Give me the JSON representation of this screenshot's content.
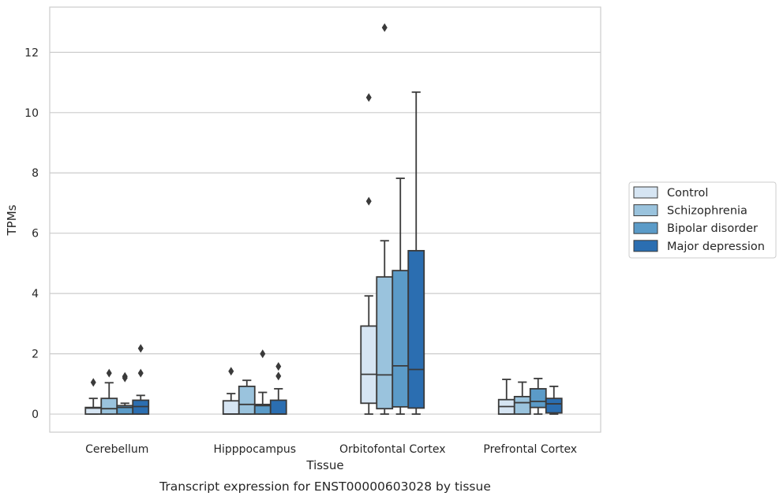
{
  "chart_data": {
    "type": "box",
    "title": "",
    "caption": "Transcript expression for ENST00000603028 by tissue",
    "xlabel": "Tissue",
    "ylabel": "TPMs",
    "ylim": [
      -0.6,
      13.5
    ],
    "yticks": [
      0,
      2,
      4,
      6,
      8,
      10,
      12
    ],
    "grid": "horizontal",
    "legend_position": "right",
    "categories": [
      "Cerebellum",
      "Hipppocampus",
      "Orbitofontal Cortex",
      "Prefrontal Cortex"
    ],
    "series": [
      {
        "name": "Control",
        "color": "#d6e5f3",
        "boxes": [
          {
            "whislo": 0,
            "q1": 0,
            "med": 0.2,
            "q3": 0.22,
            "whishi": 0.52,
            "fliers": [
              1.05
            ]
          },
          {
            "whislo": 0,
            "q1": 0,
            "med": 0,
            "q3": 0.44,
            "whishi": 0.68,
            "fliers": [
              1.42
            ]
          },
          {
            "whislo": 0,
            "q1": 0.36,
            "med": 1.32,
            "q3": 2.92,
            "whishi": 3.92,
            "fliers": [
              7.06,
              10.5
            ]
          },
          {
            "whislo": 0,
            "q1": 0,
            "med": 0.25,
            "q3": 0.48,
            "whishi": 1.15,
            "fliers": []
          }
        ]
      },
      {
        "name": "Schizophrenia",
        "color": "#9ac3dd",
        "boxes": [
          {
            "whislo": 0,
            "q1": 0,
            "med": 0.18,
            "q3": 0.52,
            "whishi": 1.04,
            "fliers": [
              1.36
            ]
          },
          {
            "whislo": 0,
            "q1": 0,
            "med": 0.32,
            "q3": 0.92,
            "whishi": 1.12,
            "fliers": []
          },
          {
            "whislo": 0,
            "q1": 0.18,
            "med": 1.3,
            "q3": 4.55,
            "whishi": 5.75,
            "fliers": [
              12.82
            ]
          },
          {
            "whislo": 0,
            "q1": 0,
            "med": 0.38,
            "q3": 0.58,
            "whishi": 1.06,
            "fliers": []
          }
        ]
      },
      {
        "name": "Bipolar disorder",
        "color": "#5b9bc8",
        "boxes": [
          {
            "whislo": 0,
            "q1": 0,
            "med": 0.22,
            "q3": 0.28,
            "whishi": 0.36,
            "fliers": [
              1.2,
              1.25
            ]
          },
          {
            "whislo": 0,
            "q1": 0,
            "med": 0.28,
            "q3": 0.32,
            "whishi": 0.72,
            "fliers": [
              2.0
            ]
          },
          {
            "whislo": 0,
            "q1": 0.24,
            "med": 1.6,
            "q3": 4.76,
            "whishi": 7.82,
            "fliers": []
          },
          {
            "whislo": 0,
            "q1": 0.22,
            "med": 0.42,
            "q3": 0.84,
            "whishi": 1.18,
            "fliers": []
          }
        ]
      },
      {
        "name": "Major depression",
        "color": "#2b6eb1",
        "boxes": [
          {
            "whislo": 0,
            "q1": 0,
            "med": 0.25,
            "q3": 0.46,
            "whishi": 0.62,
            "fliers": [
              1.36,
              2.18
            ]
          },
          {
            "whislo": 0,
            "q1": 0,
            "med": 0,
            "q3": 0.46,
            "whishi": 0.84,
            "fliers": [
              1.26,
              1.58
            ]
          },
          {
            "whislo": 0,
            "q1": 0.2,
            "med": 1.48,
            "q3": 5.42,
            "whishi": 10.68,
            "fliers": []
          },
          {
            "whislo": 0,
            "q1": 0.04,
            "med": 0.34,
            "q3": 0.52,
            "whishi": 0.92,
            "fliers": []
          }
        ]
      }
    ]
  }
}
